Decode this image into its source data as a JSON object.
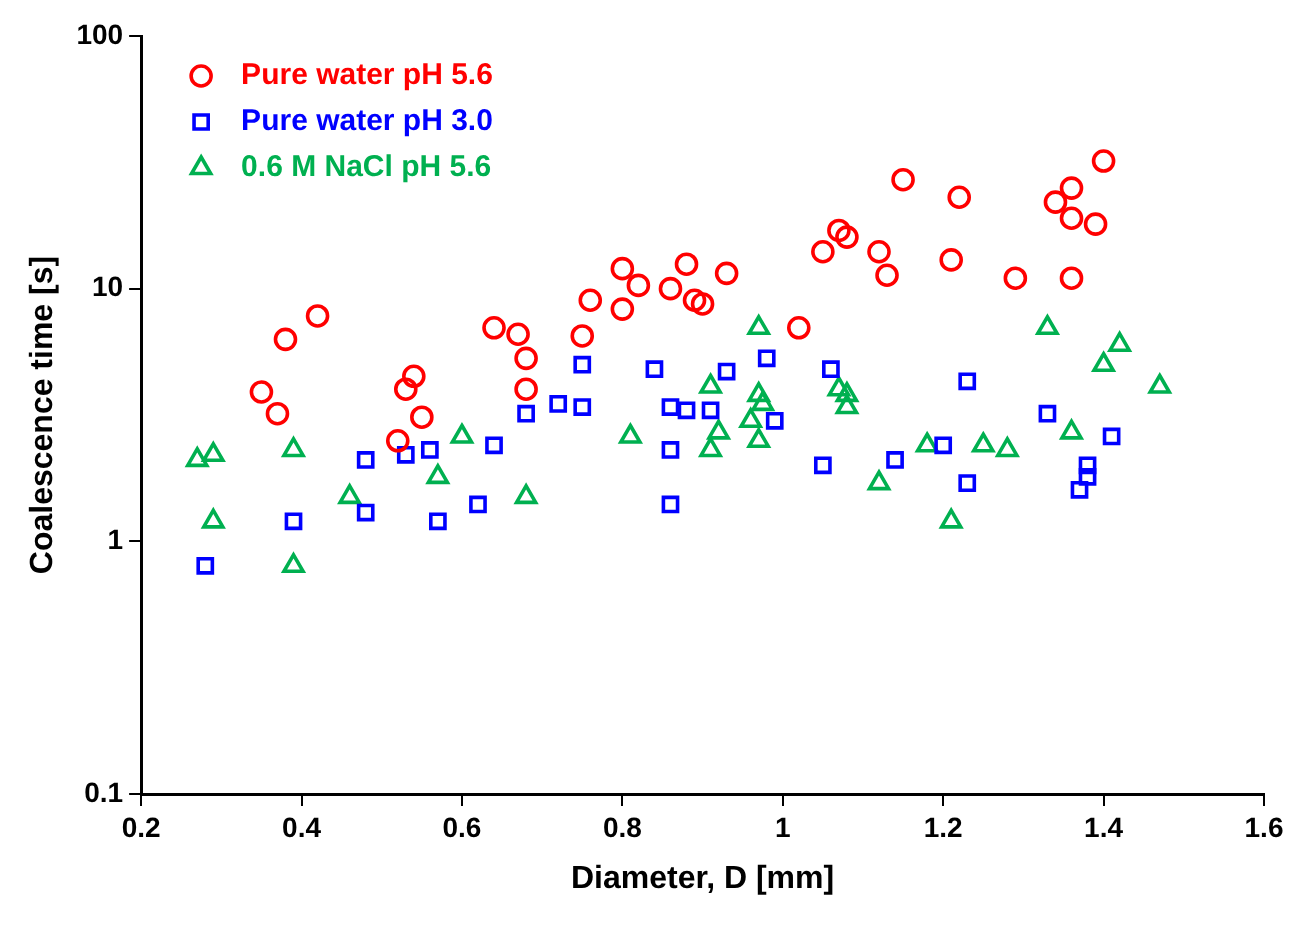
{
  "chart_data": {
    "type": "scatter",
    "xlabel": "Diameter, D [mm]",
    "ylabel": "Coalescence time [s]",
    "xlim": [
      0.2,
      1.6
    ],
    "xticks": [
      0.2,
      0.4,
      0.6,
      0.8,
      1,
      1.2,
      1.4,
      1.6
    ],
    "ylim": [
      0.1,
      100
    ],
    "yticks": [
      0.1,
      1,
      10,
      100
    ],
    "log": "y",
    "grid": false,
    "legend": "top left",
    "series": [
      {
        "name": "Pure water pH 5.6",
        "color": "#ff0000",
        "marker": "circle",
        "x": [
          0.35,
          0.37,
          0.38,
          0.42,
          0.52,
          0.53,
          0.54,
          0.55,
          0.64,
          0.67,
          0.68,
          0.68,
          0.75,
          0.76,
          0.8,
          0.8,
          0.82,
          0.86,
          0.88,
          0.89,
          0.9,
          0.93,
          1.02,
          1.05,
          1.07,
          1.08,
          1.12,
          1.13,
          1.15,
          1.21,
          1.22,
          1.29,
          1.34,
          1.36,
          1.36,
          1.36,
          1.39,
          1.4
        ],
        "values": [
          3.9,
          3.2,
          6.3,
          7.8,
          2.5,
          4.0,
          4.5,
          3.1,
          7.0,
          6.6,
          5.3,
          4.0,
          6.5,
          9.0,
          8.3,
          12,
          10.3,
          10,
          12.5,
          9.0,
          8.7,
          11.5,
          7.0,
          14,
          17,
          16,
          14,
          11.3,
          27,
          13,
          23,
          11,
          22,
          25,
          11,
          19,
          18,
          32
        ]
      },
      {
        "name": "Pure water pH 3.0",
        "color": "#0000ff",
        "marker": "square",
        "x": [
          0.28,
          0.39,
          0.48,
          0.48,
          0.53,
          0.56,
          0.57,
          0.62,
          0.64,
          0.68,
          0.72,
          0.75,
          0.75,
          0.84,
          0.86,
          0.86,
          0.86,
          0.88,
          0.91,
          0.93,
          0.98,
          0.99,
          1.05,
          1.06,
          1.14,
          1.2,
          1.23,
          1.23,
          1.33,
          1.37,
          1.38,
          1.38,
          1.41
        ],
        "values": [
          0.8,
          1.2,
          2.1,
          1.3,
          2.2,
          2.3,
          1.2,
          1.4,
          2.4,
          3.2,
          3.5,
          3.4,
          5.0,
          4.8,
          3.4,
          2.3,
          1.4,
          3.3,
          3.3,
          4.7,
          5.3,
          3.0,
          2.0,
          4.8,
          2.1,
          2.4,
          4.3,
          1.7,
          3.2,
          1.6,
          1.8,
          2.0,
          2.6
        ]
      },
      {
        "name": "0.6 M NaCl pH 5.6",
        "color": "#00b050",
        "marker": "triangle",
        "x": [
          0.27,
          0.29,
          0.29,
          0.39,
          0.39,
          0.46,
          0.6,
          0.57,
          0.68,
          0.81,
          0.91,
          0.92,
          0.91,
          0.97,
          0.97,
          0.975,
          0.97,
          0.96,
          1.07,
          1.08,
          1.08,
          1.12,
          1.18,
          1.21,
          1.25,
          1.28,
          1.33,
          1.36,
          1.4,
          1.42,
          1.47
        ],
        "values": [
          2.1,
          2.2,
          1.2,
          2.3,
          0.8,
          1.5,
          2.6,
          1.8,
          1.5,
          2.6,
          2.3,
          2.7,
          4.1,
          7.0,
          3.8,
          3.5,
          2.5,
          3.0,
          4.0,
          3.8,
          3.4,
          1.7,
          2.4,
          1.2,
          2.4,
          2.3,
          7.0,
          2.7,
          5.0,
          6.0,
          4.1
        ]
      }
    ]
  }
}
